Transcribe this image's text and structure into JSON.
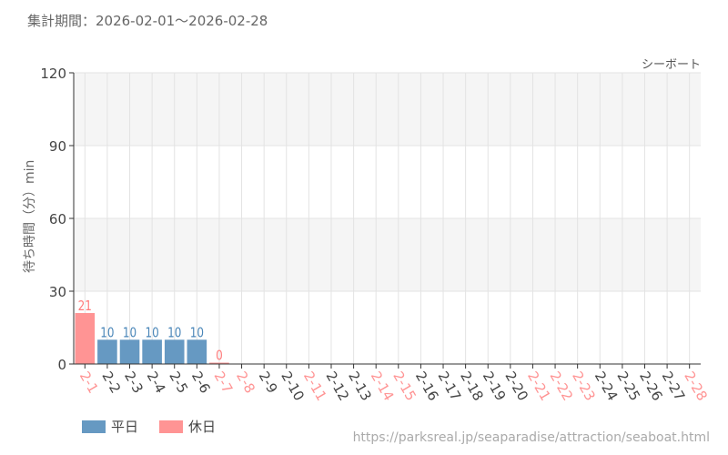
{
  "header": {
    "period": "集計期間：2026-02-01〜2026-02-28",
    "attraction": "シーボート"
  },
  "footer": {
    "url": "https://parksreal.jp/seaparadise/attraction/seaboat.html"
  },
  "legend": [
    {
      "label": "平日",
      "color": "#6699c2"
    },
    {
      "label": "休日",
      "color": "#ff9494"
    }
  ],
  "chart_data": {
    "type": "bar",
    "ylabel": "待ち時間（分）min",
    "ylim": [
      0,
      120
    ],
    "yticks": [
      0,
      30,
      60,
      90,
      120
    ],
    "grid": true,
    "legend_position": "bottom-left",
    "categories": [
      "2-1",
      "2-2",
      "2-3",
      "2-4",
      "2-5",
      "2-6",
      "2-7",
      "2-8",
      "2-9",
      "2-10",
      "2-11",
      "2-12",
      "2-13",
      "2-14",
      "2-15",
      "2-16",
      "2-17",
      "2-18",
      "2-19",
      "2-20",
      "2-21",
      "2-22",
      "2-23",
      "2-24",
      "2-25",
      "2-26",
      "2-27",
      "2-28"
    ],
    "holiday": [
      true,
      false,
      false,
      false,
      false,
      false,
      true,
      true,
      false,
      false,
      true,
      false,
      false,
      true,
      true,
      false,
      false,
      false,
      false,
      false,
      true,
      true,
      true,
      false,
      false,
      false,
      false,
      true
    ],
    "values": [
      21,
      10,
      10,
      10,
      10,
      10,
      0,
      null,
      null,
      null,
      null,
      null,
      null,
      null,
      null,
      null,
      null,
      null,
      null,
      null,
      null,
      null,
      null,
      null,
      null,
      null,
      null,
      null
    ],
    "colors": {
      "weekday": "#6699c2",
      "holiday": "#ff9494",
      "weekday_label": "#4a86b8",
      "holiday_label": "#ff7a7a"
    }
  }
}
